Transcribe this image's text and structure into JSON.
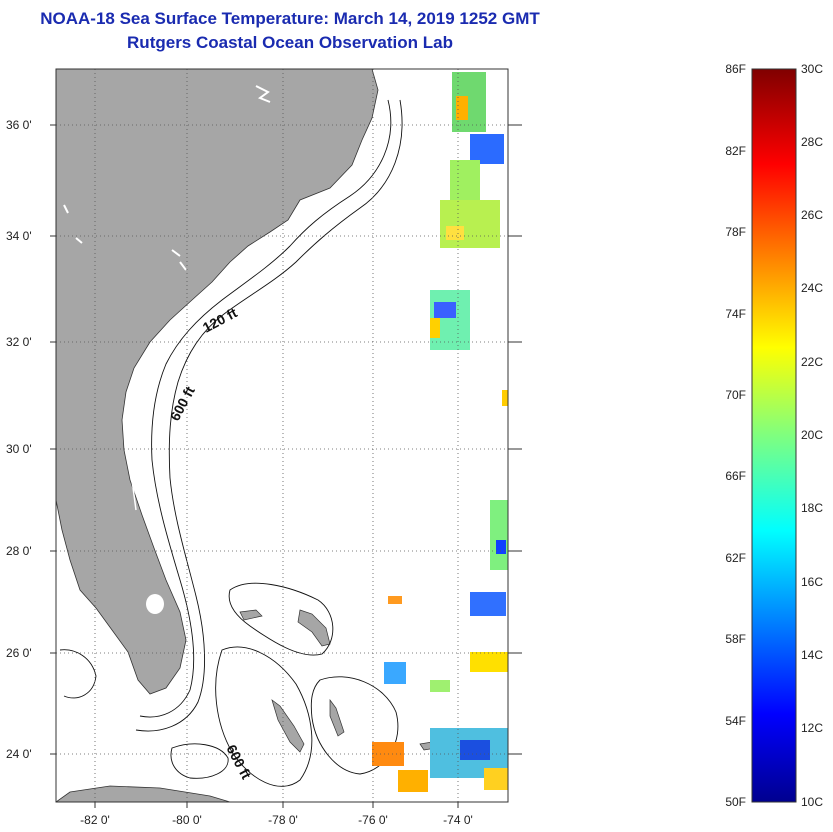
{
  "title": "NOAA-18 Sea Surface Temperature:  March 14, 2019 1252 GMT",
  "subtitle": "Rutgers Coastal Ocean Observation Lab",
  "map": {
    "lat_ticks": [
      "36 0'",
      "34 0'",
      "32 0'",
      "30 0'",
      "28 0'",
      "26 0'",
      "24 0'"
    ],
    "lon_ticks": [
      "-82 0'",
      "-80 0'",
      "-78 0'",
      "-76 0'",
      "-74 0'"
    ],
    "contour_labels": [
      "120 ft",
      "600 ft",
      "600 ft"
    ],
    "colors": {
      "land": "#a6a6a6",
      "water": "#ffffff",
      "grid": "#555555"
    }
  },
  "colorbar": {
    "f_labels": [
      "86F",
      "82F",
      "78F",
      "74F",
      "70F",
      "66F",
      "62F",
      "58F",
      "54F",
      "50F"
    ],
    "c_labels": [
      "30C",
      "28C",
      "26C",
      "24C",
      "22C",
      "20C",
      "18C",
      "16C",
      "14C",
      "12C",
      "10C"
    ]
  }
}
